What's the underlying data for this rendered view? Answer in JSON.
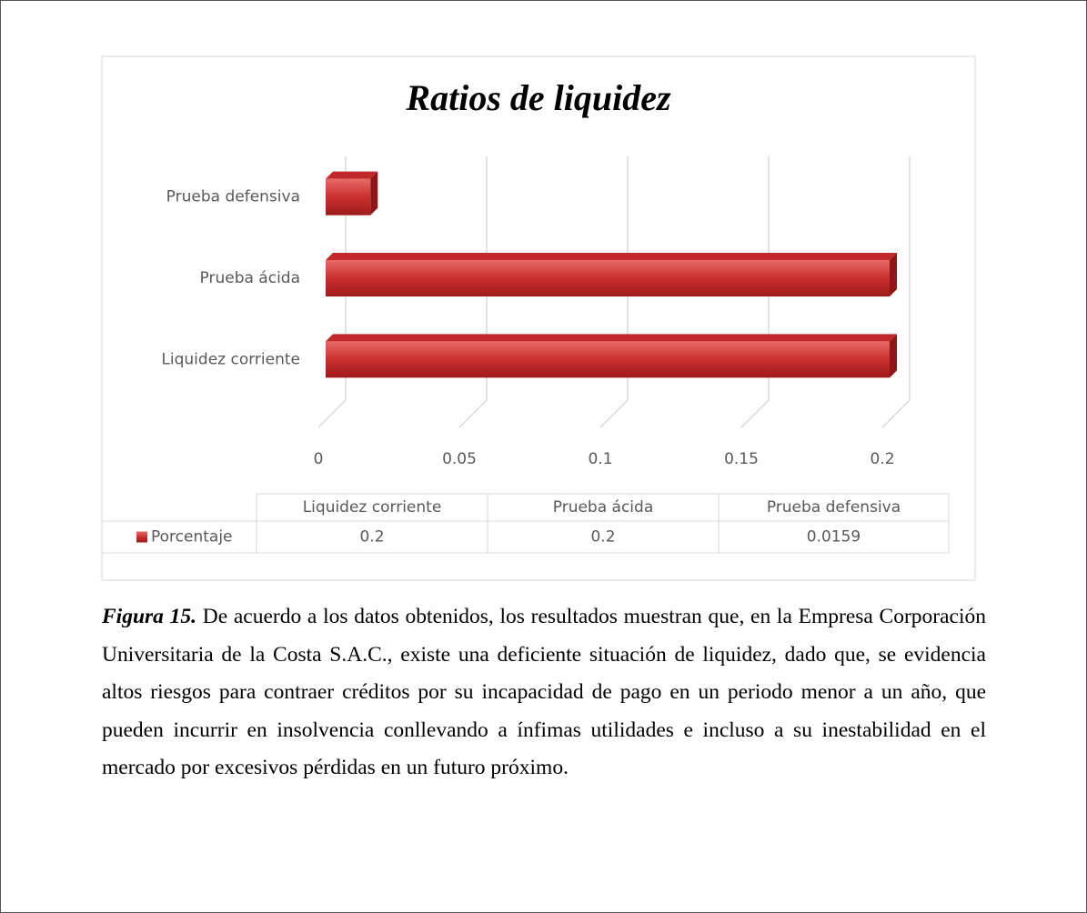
{
  "chart_data": {
    "type": "bar",
    "orientation": "horizontal",
    "title": "Ratios de liquidez",
    "categories": [
      "Liquidez corriente",
      "Prueba ácida",
      "Prueba defensiva"
    ],
    "series": [
      {
        "name": "Porcentaje",
        "color": "#c0282a",
        "values": [
          0.2,
          0.2,
          0.0159
        ]
      }
    ],
    "xlim": [
      0,
      0.2
    ],
    "xticks": [
      0,
      0.05,
      0.1,
      0.15,
      0.2
    ],
    "grid": true,
    "data_table": true
  },
  "caption": {
    "label": "Figura 15.",
    "text": "De acuerdo a los datos obtenidos, los resultados muestran que, en la Empresa Corporación Universitaria de la Costa S.A.C., existe una deficiente situación de liquidez, dado que, se evidencia altos riesgos para contraer créditos por su incapacidad de pago en un periodo menor a un año, que pueden incurrir en insolvencia conllevando a ínfimas utilidades e incluso a su inestabilidad en el mercado por excesivos pérdidas en un futuro próximo."
  }
}
